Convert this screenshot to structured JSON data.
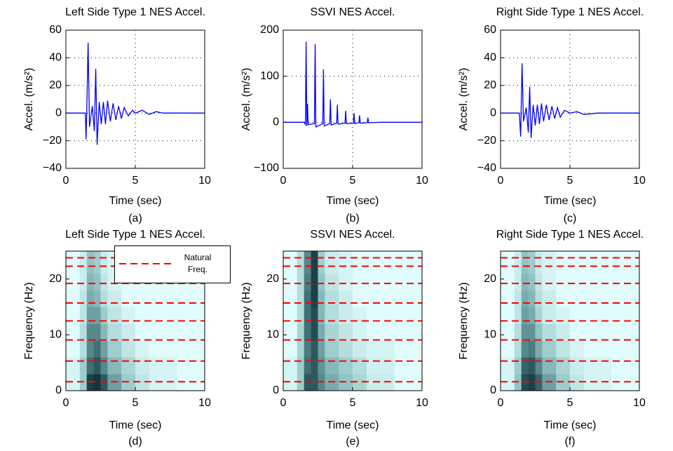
{
  "chart_data": [
    {
      "type": "line",
      "title": "Left Side Type 1 NES Accel.",
      "xlabel": "Time (sec)",
      "ylabel": "Accel. (m/s²)",
      "caption": "(a)",
      "x": [
        0,
        1.4,
        1.45,
        1.5,
        1.6,
        1.7,
        1.9,
        2.05,
        2.15,
        2.25,
        2.4,
        2.55,
        2.7,
        2.85,
        3.0,
        3.2,
        3.4,
        3.6,
        3.8,
        4.0,
        4.2,
        4.5,
        4.8,
        5.0,
        5.5,
        6.0,
        6.5,
        7.0,
        10
      ],
      "series": [
        {
          "color": "#0000ff",
          "values": [
            0,
            0,
            -19,
            0,
            51,
            -10,
            5,
            -13,
            32,
            -23,
            8,
            -8,
            8,
            -8,
            9,
            -6,
            7,
            -5,
            5,
            -4,
            4,
            -2,
            2,
            0,
            2,
            -1,
            1,
            0,
            0
          ]
        }
      ],
      "xlim": [
        0,
        10
      ],
      "ylim": [
        -40,
        60
      ],
      "xticks": [
        0,
        5,
        10
      ],
      "yticks": [
        {
          "value": -40,
          "label": "−40"
        },
        {
          "value": -20,
          "label": "−20"
        },
        0,
        20,
        40,
        60
      ],
      "grid": true
    },
    {
      "type": "line",
      "title": "SSVI NES Accel.",
      "xlabel": "Time (sec)",
      "ylabel": "Accel. (m/s²)",
      "caption": "(b)",
      "x": [
        0,
        1.5,
        1.6,
        1.65,
        1.7,
        1.75,
        1.8,
        2.25,
        2.3,
        2.35,
        2.85,
        2.9,
        2.95,
        3.35,
        3.4,
        3.45,
        3.85,
        3.9,
        3.95,
        4.45,
        4.5,
        4.55,
        5.05,
        5.1,
        5.15,
        5.45,
        5.5,
        5.55,
        6.05,
        6.1,
        6.15,
        7.0,
        10
      ],
      "series": [
        {
          "color": "#0000ff",
          "values": [
            0,
            0,
            -5,
            175,
            -8,
            40,
            -5,
            -3,
            170,
            -10,
            -3,
            115,
            -8,
            -3,
            50,
            -6,
            -2,
            38,
            -4,
            -2,
            25,
            -3,
            -2,
            20,
            -3,
            -1,
            15,
            -2,
            -1,
            10,
            -1,
            0,
            0
          ]
        }
      ],
      "xlim": [
        0,
        10
      ],
      "ylim": [
        -100,
        200
      ],
      "xticks": [
        0,
        5,
        10
      ],
      "yticks": [
        {
          "value": -100,
          "label": "−100"
        },
        0,
        100,
        200
      ],
      "grid": true
    },
    {
      "type": "line",
      "title": "Right Side Type 1 NES Accel.",
      "xlabel": "Time (sec)",
      "ylabel": "Accel. (m/s²)",
      "caption": "(c)",
      "x": [
        0,
        1.35,
        1.45,
        1.55,
        1.65,
        1.85,
        2.0,
        2.1,
        2.2,
        2.35,
        2.5,
        2.65,
        2.8,
        2.95,
        3.1,
        3.3,
        3.5,
        3.7,
        3.9,
        4.1,
        4.3,
        4.6,
        5.0,
        5.5,
        6.0,
        7.0,
        10
      ],
      "series": [
        {
          "color": "#0000ff",
          "values": [
            0,
            0,
            -17,
            36,
            -6,
            4,
            -14,
            19,
            -18,
            6,
            -9,
            6,
            -8,
            7,
            -6,
            6,
            -5,
            5,
            -4,
            4,
            -3,
            2,
            0,
            1,
            -1,
            0,
            0
          ]
        }
      ],
      "xlim": [
        0,
        10
      ],
      "ylim": [
        -40,
        60
      ],
      "xticks": [
        0,
        5,
        10
      ],
      "yticks": [
        {
          "value": -40,
          "label": "−40"
        },
        {
          "value": -20,
          "label": "−20"
        },
        0,
        20,
        40,
        60
      ],
      "grid": true
    },
    {
      "type": "heatmap",
      "title": "Left Side Type 1 NES Accel.",
      "xlabel": "Time (sec)",
      "ylabel": "Frequency (Hz)",
      "caption": "(d)",
      "t_edges": [
        0,
        1,
        1.5,
        2,
        2.5,
        3,
        4,
        5,
        6,
        8,
        10
      ],
      "f_edges": [
        0,
        3,
        6,
        9,
        12,
        15,
        18,
        21,
        25
      ],
      "z": [
        [
          0.05,
          0.3,
          0.9,
          0.95,
          0.8,
          0.5,
          0.3,
          0.15,
          0.05,
          0
        ],
        [
          0.05,
          0.3,
          0.7,
          0.8,
          0.6,
          0.4,
          0.25,
          0.1,
          0.05,
          0
        ],
        [
          0,
          0.2,
          0.6,
          0.7,
          0.5,
          0.3,
          0.15,
          0.05,
          0,
          0
        ],
        [
          0,
          0.2,
          0.6,
          0.6,
          0.4,
          0.2,
          0.1,
          0,
          0,
          0
        ],
        [
          0,
          0.15,
          0.5,
          0.5,
          0.3,
          0.15,
          0.05,
          0,
          0,
          0
        ],
        [
          0,
          0.15,
          0.45,
          0.4,
          0.2,
          0.1,
          0,
          0,
          0,
          0
        ],
        [
          0,
          0.1,
          0.4,
          0.35,
          0.15,
          0.05,
          0,
          0,
          0,
          0
        ],
        [
          0,
          0.1,
          0.35,
          0.3,
          0.1,
          0.05,
          0,
          0,
          0,
          0
        ]
      ],
      "natural_freqs": {
        "name": "Natural Freq.",
        "color": "#ff0000",
        "values": [
          1.6,
          5.3,
          9.1,
          12.5,
          15.7,
          19.2,
          22.3,
          23.8
        ]
      },
      "xlim": [
        0,
        10
      ],
      "ylim": [
        0,
        25
      ],
      "xticks": [
        0,
        5,
        10
      ],
      "yticks": [
        0,
        10,
        20
      ],
      "legend": true
    },
    {
      "type": "heatmap",
      "title": "SSVI NES Accel.",
      "xlabel": "Time (sec)",
      "ylabel": "Frequency (Hz)",
      "caption": "(e)",
      "t_edges": [
        0,
        1,
        1.5,
        2,
        2.5,
        3,
        4,
        5,
        6,
        8,
        10
      ],
      "f_edges": [
        0,
        3,
        6,
        9,
        12,
        15,
        18,
        21,
        25
      ],
      "z": [
        [
          0.05,
          0.3,
          0.8,
          0.8,
          0.6,
          0.45,
          0.35,
          0.25,
          0.1,
          0
        ],
        [
          0.05,
          0.3,
          0.7,
          0.8,
          0.55,
          0.4,
          0.3,
          0.2,
          0.08,
          0
        ],
        [
          0,
          0.25,
          0.65,
          0.8,
          0.5,
          0.3,
          0.2,
          0.1,
          0.05,
          0
        ],
        [
          0,
          0.25,
          0.7,
          0.85,
          0.45,
          0.25,
          0.15,
          0.05,
          0,
          0
        ],
        [
          0,
          0.2,
          0.7,
          0.85,
          0.4,
          0.2,
          0.1,
          0.05,
          0,
          0
        ],
        [
          0,
          0.2,
          0.7,
          0.9,
          0.4,
          0.2,
          0.1,
          0,
          0,
          0
        ],
        [
          0,
          0.2,
          0.65,
          0.9,
          0.35,
          0.15,
          0.05,
          0,
          0,
          0
        ],
        [
          0,
          0.2,
          0.6,
          0.9,
          0.3,
          0.1,
          0.05,
          0,
          0,
          0
        ]
      ],
      "natural_freqs": {
        "name": "Natural Freq.",
        "color": "#ff0000",
        "values": [
          1.6,
          5.3,
          9.1,
          12.5,
          15.7,
          19.2,
          22.3,
          23.8
        ]
      },
      "xlim": [
        0,
        10
      ],
      "ylim": [
        0,
        25
      ],
      "xticks": [
        0,
        5,
        10
      ],
      "yticks": [
        0,
        10,
        20
      ],
      "legend": false
    },
    {
      "type": "heatmap",
      "title": "Right Side Type 1 NES Accel.",
      "xlabel": "Time (sec)",
      "ylabel": "Frequency (Hz)",
      "caption": "(f)",
      "t_edges": [
        0,
        1,
        1.5,
        2,
        2.5,
        3,
        4,
        5,
        6,
        8,
        10
      ],
      "f_edges": [
        0,
        3,
        6,
        9,
        12,
        15,
        18,
        21,
        25
      ],
      "z": [
        [
          0.05,
          0.35,
          0.85,
          0.9,
          0.75,
          0.5,
          0.3,
          0.15,
          0.05,
          0
        ],
        [
          0.05,
          0.3,
          0.75,
          0.8,
          0.6,
          0.4,
          0.25,
          0.1,
          0.05,
          0
        ],
        [
          0,
          0.2,
          0.6,
          0.65,
          0.45,
          0.3,
          0.15,
          0.05,
          0,
          0
        ],
        [
          0,
          0.2,
          0.55,
          0.55,
          0.35,
          0.2,
          0.1,
          0,
          0,
          0
        ],
        [
          0,
          0.15,
          0.5,
          0.45,
          0.25,
          0.1,
          0.05,
          0,
          0,
          0
        ],
        [
          0,
          0.15,
          0.45,
          0.4,
          0.2,
          0.1,
          0,
          0,
          0,
          0
        ],
        [
          0,
          0.1,
          0.4,
          0.35,
          0.15,
          0.05,
          0,
          0,
          0,
          0
        ],
        [
          0,
          0.1,
          0.35,
          0.3,
          0.1,
          0.05,
          0,
          0,
          0,
          0
        ]
      ],
      "natural_freqs": {
        "name": "Natural Freq.",
        "color": "#ff0000",
        "values": [
          1.6,
          5.3,
          9.1,
          12.5,
          15.7,
          19.2,
          22.3,
          23.8
        ]
      },
      "xlim": [
        0,
        10
      ],
      "ylim": [
        0,
        25
      ],
      "xticks": [
        0,
        5,
        10
      ],
      "yticks": [
        0,
        10,
        20
      ],
      "legend": false
    }
  ]
}
